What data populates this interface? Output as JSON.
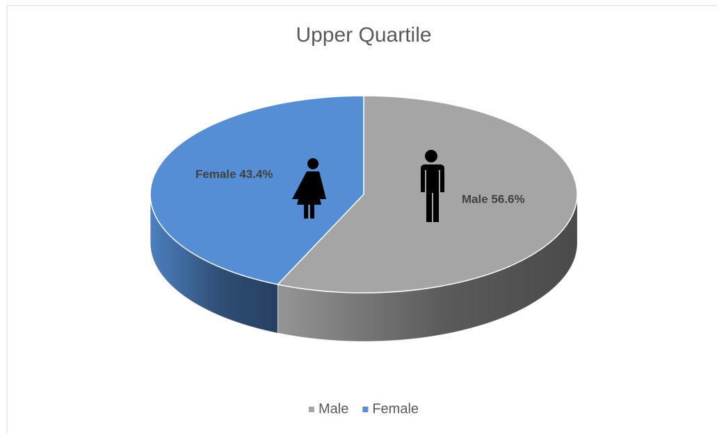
{
  "chart_data": {
    "type": "pie",
    "title": "Upper Quartile",
    "categories": [
      "Male",
      "Female"
    ],
    "values": [
      56.6,
      43.4
    ],
    "value_labels": [
      "Male 56.6%",
      "Female 43.4%"
    ],
    "colors": [
      "#a5a5a5",
      "#558ed5"
    ],
    "legend": "bottom"
  }
}
